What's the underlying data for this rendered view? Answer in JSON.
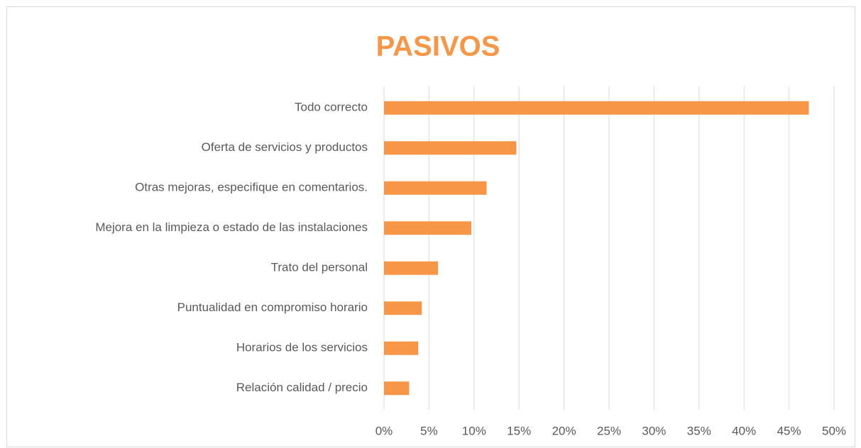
{
  "chart_data": {
    "type": "barh",
    "title": "PASIVOS",
    "categories": [
      "Todo correcto",
      "Oferta de servicios y productos",
      "Otras mejoras, especifique en comentarios.",
      "Mejora en la limpieza o estado de las instalaciones",
      "Trato del personal",
      "Puntualidad en compromiso horario",
      "Horarios de los servicios",
      "Relación calidad / precio"
    ],
    "values": [
      47.2,
      14.7,
      11.4,
      9.7,
      6.0,
      4.2,
      3.8,
      2.8
    ],
    "color": "#f79646",
    "xlim": [
      0,
      50
    ],
    "xticks": [
      {
        "value": 0,
        "label": "0%"
      },
      {
        "value": 5,
        "label": "5%"
      },
      {
        "value": 10,
        "label": "10%"
      },
      {
        "value": 15,
        "label": "15%"
      },
      {
        "value": 20,
        "label": "20%"
      },
      {
        "value": 25,
        "label": "25%"
      },
      {
        "value": 30,
        "label": "30%"
      },
      {
        "value": 35,
        "label": "35%"
      },
      {
        "value": 40,
        "label": "40%"
      },
      {
        "value": 45,
        "label": "45%"
      },
      {
        "value": 50,
        "label": "50%"
      }
    ],
    "grid": true
  }
}
